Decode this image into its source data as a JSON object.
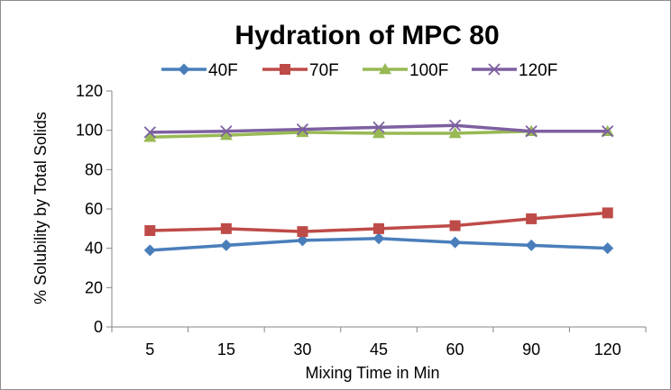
{
  "chart_data": {
    "type": "line",
    "title": "Hydration of MPC 80",
    "xlabel": "Mixing Time  in Min",
    "ylabel": "% Solubility by Total  Solids",
    "categories": [
      "5",
      "15",
      "30",
      "45",
      "60",
      "90",
      "120"
    ],
    "ylim": [
      0,
      120
    ],
    "yticks": [
      0,
      20,
      40,
      60,
      80,
      100,
      120
    ],
    "grid": false,
    "legend_position": "top",
    "series": [
      {
        "name": "40F",
        "color": "#4a7ebb",
        "marker": "diamond",
        "values": [
          39,
          41.5,
          44,
          45,
          43,
          41.5,
          40
        ]
      },
      {
        "name": "70F",
        "color": "#be4b48",
        "marker": "square",
        "values": [
          49,
          50,
          48.5,
          50,
          51.5,
          55,
          58
        ]
      },
      {
        "name": "100F",
        "color": "#98b954",
        "marker": "triangle",
        "values": [
          96.5,
          97.5,
          99,
          98.5,
          98.5,
          99.5,
          99.5
        ]
      },
      {
        "name": "120F",
        "color": "#7d60a0",
        "marker": "x",
        "values": [
          99,
          99.5,
          100.5,
          101.5,
          102.5,
          99.5,
          99.5
        ]
      }
    ]
  }
}
